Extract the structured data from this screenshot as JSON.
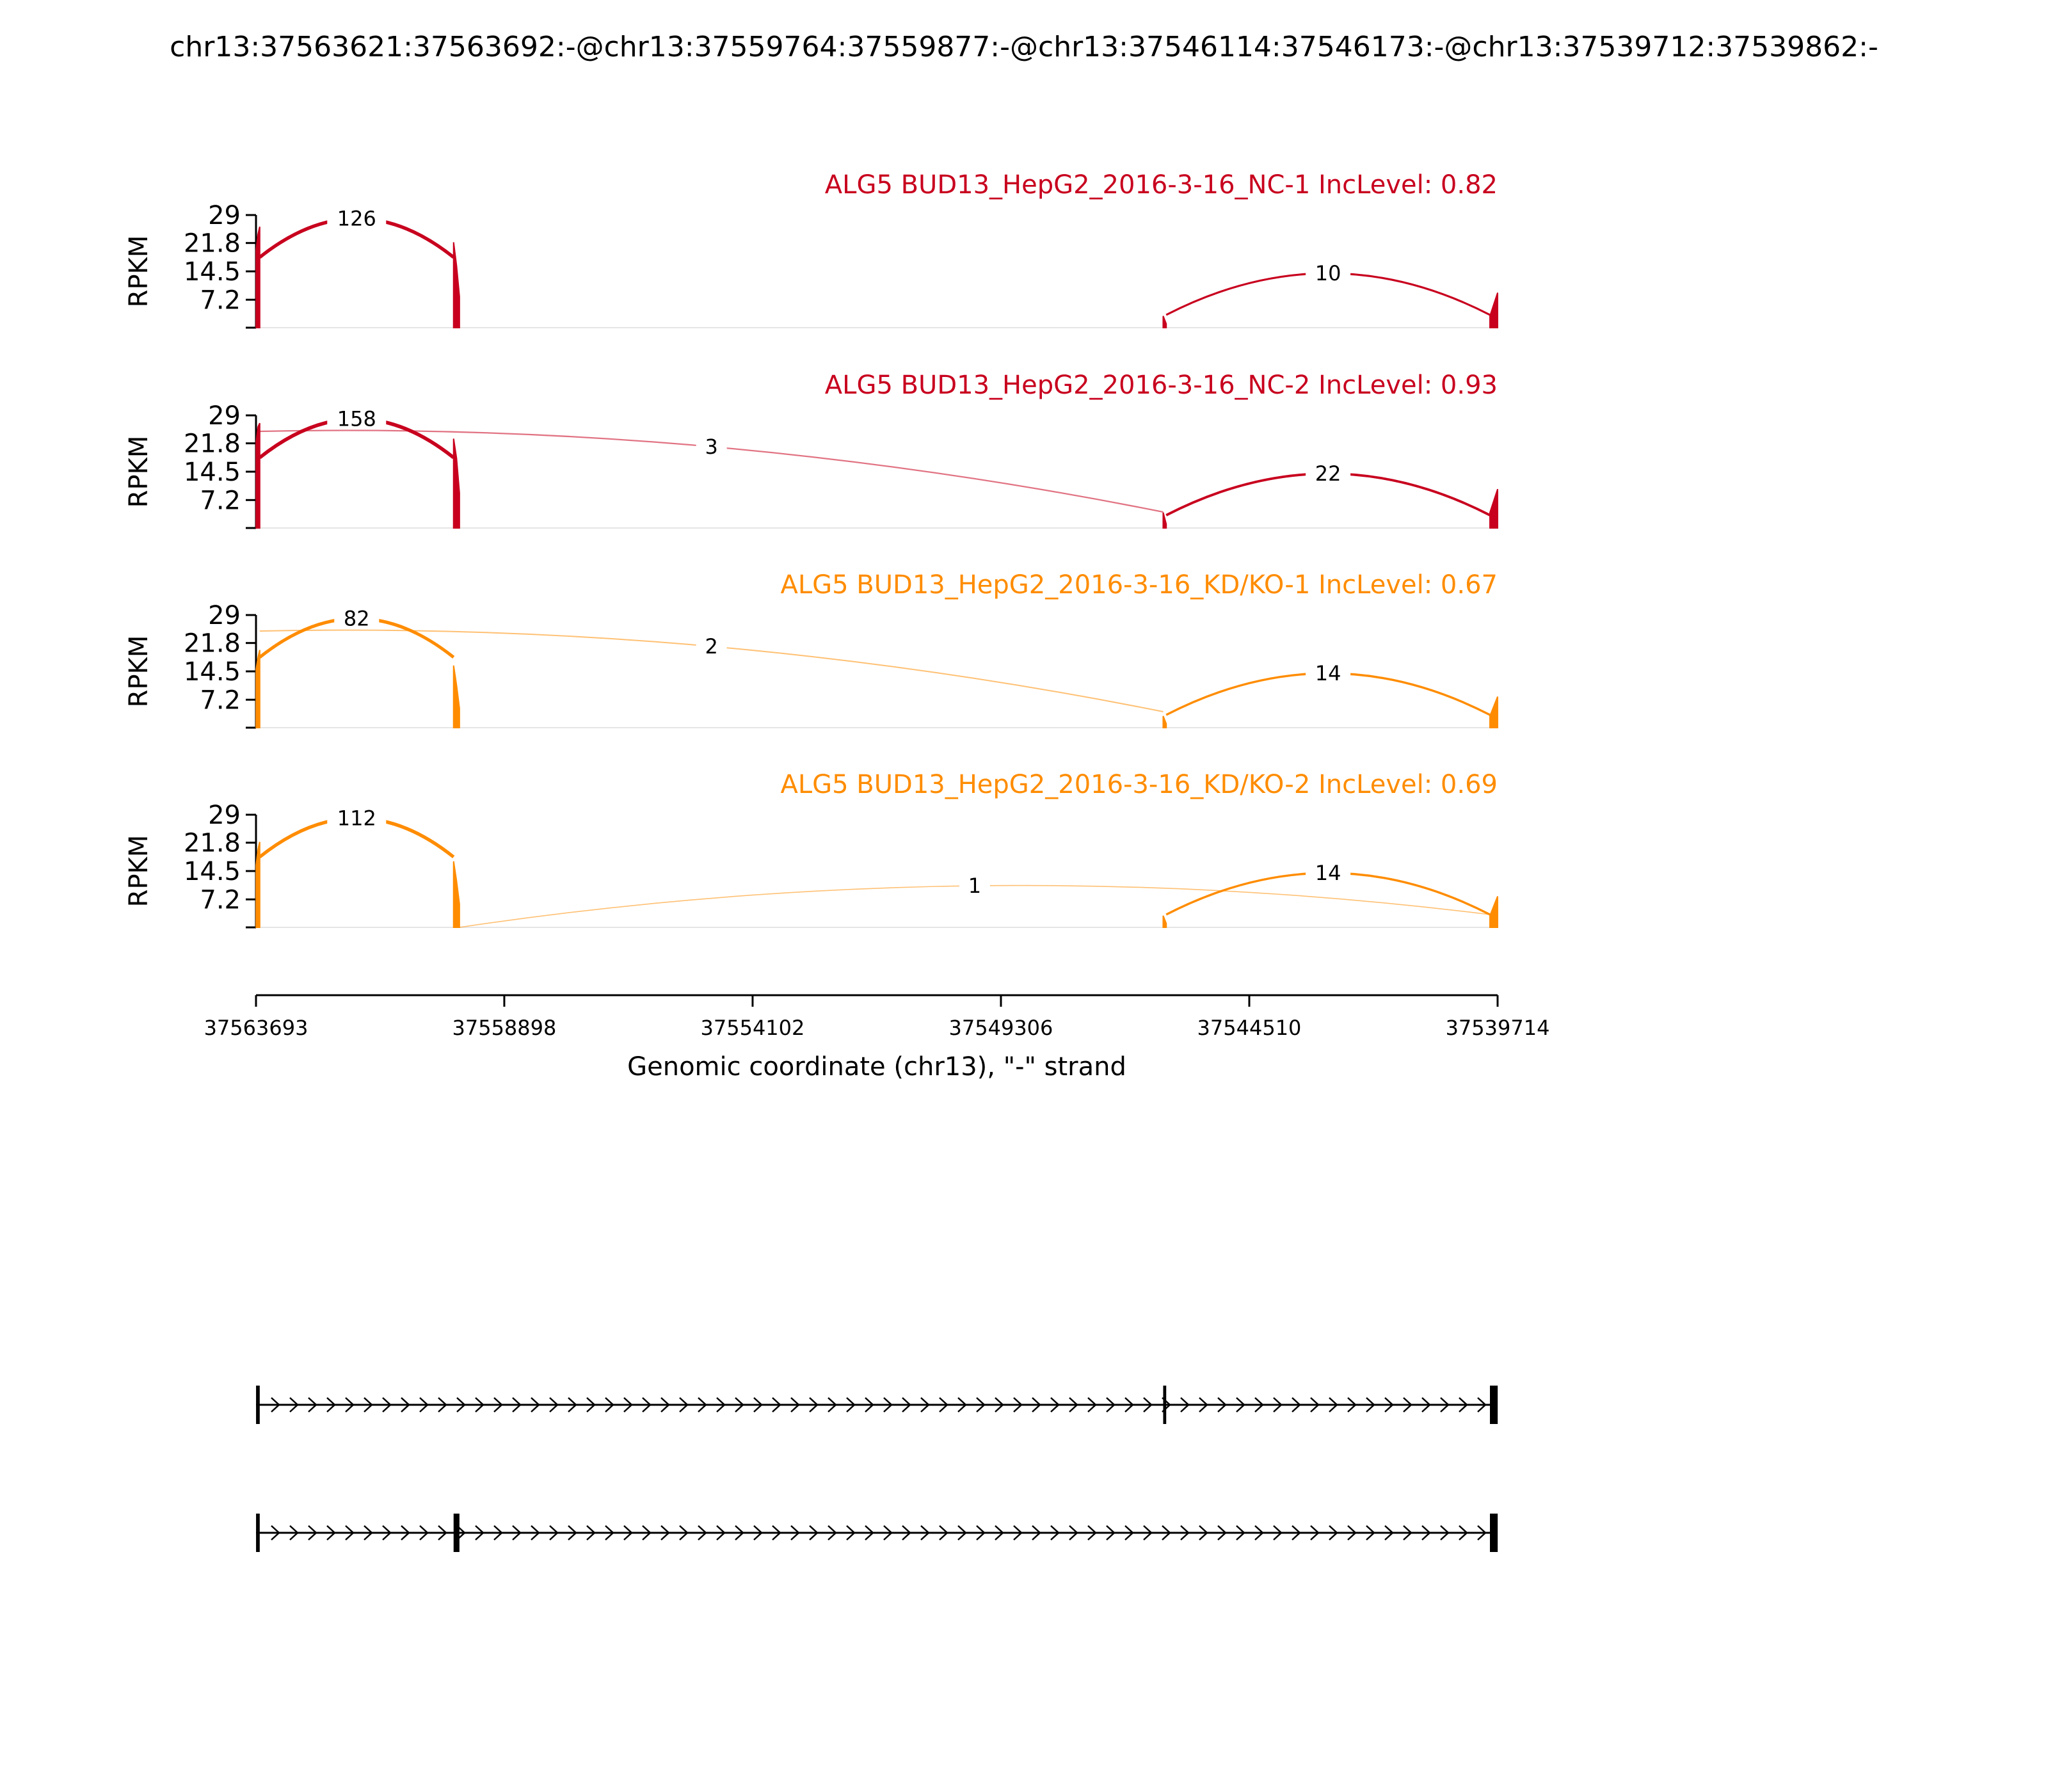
{
  "title": "chr13:37563621:37563692:-@chr13:37559764:37559877:-@chr13:37546114:37546173:-@chr13:37539712:37539862:-",
  "colors": {
    "nc": "#c8001e",
    "kd": "#ff8c00",
    "axis": "#000000",
    "baseline": "#e5e5e5"
  },
  "chart_data": {
    "type": "area",
    "xlabel": "Genomic coordinate (chr13), \"-\" strand",
    "ylabel": "RPKM",
    "xlim": [
      37563693,
      37539714
    ],
    "x_ticks": [
      37563693,
      37558898,
      37554102,
      37549306,
      37544510,
      37539714
    ],
    "x_tick_labels": [
      "37563693",
      "37558898",
      "37554102",
      "37549306",
      "37544510",
      "37539714"
    ],
    "ylim": [
      0,
      29
    ],
    "y_ticks": [
      0,
      7.2,
      14.5,
      21.8,
      29
    ],
    "y_tick_labels": [
      "",
      "7.2",
      "14.5",
      "21.8",
      "29"
    ],
    "exons": [
      {
        "start": 37563621,
        "end": 37563692
      },
      {
        "start": 37559764,
        "end": 37559877
      },
      {
        "start": 37546114,
        "end": 37546173
      },
      {
        "start": 37539712,
        "end": 37539862
      }
    ],
    "panels": [
      {
        "label": "ALG5 BUD13_HepG2_2016-3-16_NC-1 IncLevel: 0.82",
        "group": "nc",
        "coverage": [
          {
            "from": 37563690,
            "to": 37563621,
            "values": [
              20,
              24,
              26
            ]
          },
          {
            "from": 37559877,
            "to": 37559764,
            "values": [
              22,
              16,
              8
            ]
          },
          {
            "from": 37546173,
            "to": 37546114,
            "values": [
              3,
              1
            ]
          },
          {
            "from": 37539862,
            "to": 37539714,
            "values": [
              3,
              9
            ]
          }
        ],
        "junctions": [
          {
            "from": 37563621,
            "to": 37559877,
            "count": 126,
            "label": "126"
          },
          {
            "from": 37546114,
            "to": 37539862,
            "count": 10,
            "label": "10"
          }
        ]
      },
      {
        "label": "ALG5 BUD13_HepG2_2016-3-16_NC-2 IncLevel: 0.93",
        "group": "nc",
        "coverage": [
          {
            "from": 37563690,
            "to": 37563621,
            "values": [
              22,
              26,
              27
            ]
          },
          {
            "from": 37559877,
            "to": 37559764,
            "values": [
              23,
              18,
              9
            ]
          },
          {
            "from": 37546173,
            "to": 37546114,
            "values": [
              4,
              1
            ]
          },
          {
            "from": 37539862,
            "to": 37539714,
            "values": [
              4,
              10
            ]
          }
        ],
        "junctions": [
          {
            "from": 37563621,
            "to": 37559877,
            "count": 158,
            "label": "158"
          },
          {
            "from": 37563621,
            "to": 37546173,
            "count": 3,
            "label": "3"
          },
          {
            "from": 37546114,
            "to": 37539862,
            "count": 22,
            "label": "22"
          }
        ]
      },
      {
        "label": "ALG5 BUD13_HepG2_2016-3-16_KD/KO-1 IncLevel: 0.67",
        "group": "kd",
        "coverage": [
          {
            "from": 37563690,
            "to": 37563621,
            "values": [
              15,
              18,
              20
            ]
          },
          {
            "from": 37559877,
            "to": 37559764,
            "values": [
              16,
              11,
              5
            ]
          },
          {
            "from": 37546173,
            "to": 37546114,
            "values": [
              3,
              1
            ]
          },
          {
            "from": 37539862,
            "to": 37539714,
            "values": [
              3,
              8
            ]
          }
        ],
        "junctions": [
          {
            "from": 37563621,
            "to": 37559877,
            "count": 82,
            "label": "82"
          },
          {
            "from": 37563621,
            "to": 37546173,
            "count": 2,
            "label": "2"
          },
          {
            "from": 37546114,
            "to": 37539862,
            "count": 14,
            "label": "14"
          }
        ]
      },
      {
        "label": "ALG5 BUD13_HepG2_2016-3-16_KD/KO-2 IncLevel: 0.69",
        "group": "kd",
        "coverage": [
          {
            "from": 37563690,
            "to": 37563621,
            "values": [
              16,
              20,
              22
            ]
          },
          {
            "from": 37559877,
            "to": 37559764,
            "values": [
              17,
              12,
              6
            ]
          },
          {
            "from": 37546173,
            "to": 37546114,
            "values": [
              3,
              1
            ]
          },
          {
            "from": 37539862,
            "to": 37539714,
            "values": [
              3,
              8
            ]
          }
        ],
        "junctions": [
          {
            "from": 37563621,
            "to": 37559877,
            "count": 112,
            "label": "112"
          },
          {
            "from": 37559764,
            "to": 37539862,
            "count": 1,
            "label": "1"
          },
          {
            "from": 37546114,
            "to": 37539862,
            "count": 14,
            "label": "14"
          }
        ]
      }
    ],
    "isoforms": [
      {
        "exons": [
          [
            37563692,
            37563621
          ],
          [
            37546173,
            37546114
          ],
          [
            37539862,
            37539712
          ]
        ]
      },
      {
        "exons": [
          [
            37563692,
            37563621
          ],
          [
            37559877,
            37559764
          ],
          [
            37539862,
            37539712
          ]
        ]
      }
    ]
  }
}
